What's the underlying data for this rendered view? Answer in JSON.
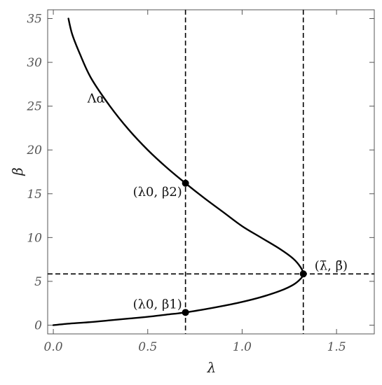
{
  "chart_data": {
    "type": "line",
    "xlabel": "λ",
    "ylabel": "β",
    "xlim": [
      -0.03,
      1.7
    ],
    "ylim": [
      -1,
      36
    ],
    "x_ticks": [
      0.0,
      0.5,
      1.0,
      1.5
    ],
    "x_tick_labels": [
      "0.0",
      "0.5",
      "1.0",
      "1.5"
    ],
    "y_ticks": [
      0,
      5,
      10,
      15,
      20,
      25,
      30,
      35
    ],
    "y_tick_labels": [
      "0",
      "5",
      "10",
      "15",
      "20",
      "25",
      "30",
      "35"
    ],
    "grid": false,
    "series": [
      {
        "name": "Λα",
        "color": "#000000",
        "style": "solid",
        "points": [
          [
            0.0,
            0.0
          ],
          [
            0.1,
            0.2
          ],
          [
            0.2,
            0.35
          ],
          [
            0.3,
            0.55
          ],
          [
            0.4,
            0.75
          ],
          [
            0.5,
            0.95
          ],
          [
            0.6,
            1.2
          ],
          [
            0.7,
            1.45
          ],
          [
            0.8,
            1.8
          ],
          [
            0.9,
            2.2
          ],
          [
            1.0,
            2.65
          ],
          [
            1.1,
            3.2
          ],
          [
            1.2,
            3.9
          ],
          [
            1.27,
            4.6
          ],
          [
            1.31,
            5.3
          ],
          [
            1.324,
            5.85
          ],
          [
            1.31,
            6.6
          ],
          [
            1.27,
            7.6
          ],
          [
            1.2,
            8.7
          ],
          [
            1.1,
            10.0
          ],
          [
            1.0,
            11.3
          ],
          [
            0.9,
            12.9
          ],
          [
            0.8,
            14.5
          ],
          [
            0.7,
            16.2
          ],
          [
            0.6,
            18.0
          ],
          [
            0.5,
            20.0
          ],
          [
            0.4,
            22.3
          ],
          [
            0.3,
            25.0
          ],
          [
            0.2,
            28.2
          ],
          [
            0.14,
            31.0
          ],
          [
            0.1,
            33.2
          ],
          [
            0.08,
            35.0
          ]
        ]
      }
    ],
    "reference_lines": [
      {
        "orientation": "vertical",
        "value": 0.7,
        "style": "dashed"
      },
      {
        "orientation": "vertical",
        "value": 1.324,
        "style": "dashed"
      },
      {
        "orientation": "horizontal",
        "value": 5.85,
        "style": "dashed"
      }
    ],
    "marked_points": [
      {
        "x": 0.7,
        "y": 16.2,
        "label": "(λ0, β2)"
      },
      {
        "x": 0.7,
        "y": 1.45,
        "label": "(λ0, β1)"
      },
      {
        "x": 1.324,
        "y": 5.85,
        "label": "(λ̄, β̄)"
      }
    ],
    "curve_label": {
      "text": "Λα",
      "x": 0.18,
      "y": 25.4
    }
  }
}
